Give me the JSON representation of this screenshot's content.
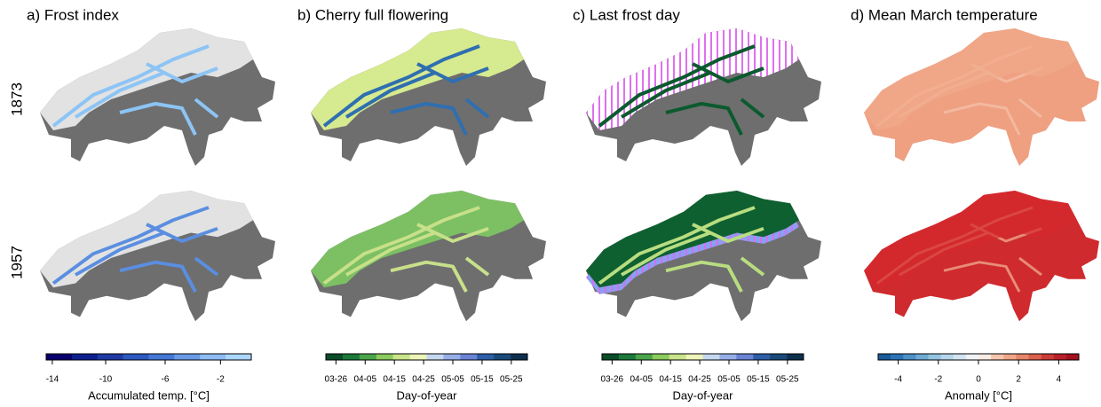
{
  "row_labels": [
    "1873",
    "1957"
  ],
  "panels": [
    {
      "title": "a) Frost index",
      "colorbar": {
        "ticks": [
          "-14",
          "-10",
          "-6",
          "-2"
        ],
        "label": "Accumulated temp. [°C]",
        "colors": [
          "#08006e",
          "#0d1f8f",
          "#1f3aa5",
          "#2d57c1",
          "#4478d6",
          "#6a9ae6",
          "#8dbcf5",
          "#acd6fb"
        ]
      }
    },
    {
      "title": "b) Cherry full flowering",
      "colorbar": {
        "ticks": [
          "03-26",
          "04-05",
          "04-15",
          "04-25",
          "05-05",
          "05-15",
          "05-25"
        ],
        "label": "Day-of-year",
        "colors": [
          "#0b4d2a",
          "#1a7a3a",
          "#4aa44a",
          "#8ccb5e",
          "#c9e48b",
          "#eef4b8",
          "#c6d8f0",
          "#96aee8",
          "#6a83d6",
          "#2e5ea8",
          "#1a4a7a",
          "#0e2f4e"
        ]
      }
    },
    {
      "title": "c) Last frost day",
      "colorbar": {
        "ticks": [
          "03-26",
          "04-05",
          "04-15",
          "04-25",
          "05-05",
          "05-15",
          "05-25"
        ],
        "label": "Day-of-year",
        "colors": [
          "#0b4d2a",
          "#1a7a3a",
          "#4aa44a",
          "#8ccb5e",
          "#c9e48b",
          "#eef4b8",
          "#c6d8f0",
          "#96aee8",
          "#6a83d6",
          "#2e5ea8",
          "#1a4a7a",
          "#0e2f4e"
        ]
      }
    },
    {
      "title": "d) Mean March temperature",
      "colorbar": {
        "ticks": [
          "-4",
          "-2",
          "0",
          "2",
          "4"
        ],
        "label": "Anomaly [°C]",
        "colors": [
          "#1a5b9a",
          "#2c74b5",
          "#4b90c6",
          "#6eaad4",
          "#94c3e0",
          "#b6d6ea",
          "#d2e5f0",
          "#eef3f6",
          "#f9ece4",
          "#f6c6ae",
          "#f0a789",
          "#e6856a",
          "#d9614d",
          "#cb3b37",
          "#bb1f2b",
          "#a3101f"
        ]
      }
    }
  ]
}
